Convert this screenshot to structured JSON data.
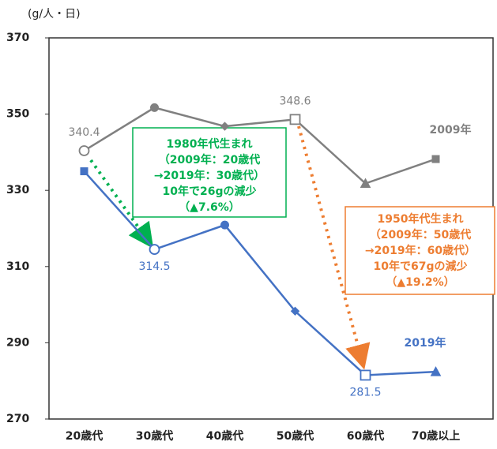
{
  "chart_data": {
    "type": "line",
    "y_axis_label": "(g/人・日)",
    "categories": [
      "20歳代",
      "30歳代",
      "40歳代",
      "50歳代",
      "60歳代",
      "70歳以上"
    ],
    "ylim": [
      270,
      370
    ],
    "yticks": [
      270,
      290,
      310,
      330,
      350,
      370
    ],
    "series": [
      {
        "name": "2009年",
        "color": "#808080",
        "values": [
          340.4,
          351.7,
          346.8,
          348.6,
          331.8,
          338.2
        ],
        "value_labels": [
          "340.4",
          null,
          null,
          "348.6",
          null,
          null
        ],
        "markers": [
          "hollow-circle",
          "circle",
          "diamond",
          "hollow-square",
          "triangle",
          "square"
        ]
      },
      {
        "name": "2019年",
        "color": "#4472c4",
        "values": [
          335.0,
          314.5,
          320.9,
          298.3,
          281.5,
          282.4
        ],
        "value_labels": [
          null,
          "314.5",
          null,
          null,
          "281.5",
          null
        ],
        "markers": [
          "square",
          "hollow-circle",
          "circle",
          "diamond",
          "hollow-square",
          "triangle"
        ]
      }
    ],
    "annotations": [
      {
        "color": "#00b050",
        "lines": [
          "1980年代生まれ",
          "（2009年：20歳代",
          "→2019年：30歳代）",
          "10年で26gの減少",
          "（▲7.6%）"
        ]
      },
      {
        "color": "#ed7d31",
        "lines": [
          "1950年代生まれ",
          "（2009年：50歳代",
          "→2019年：60歳代）",
          "10年で67gの減少",
          "（▲19.2%）"
        ]
      }
    ]
  }
}
